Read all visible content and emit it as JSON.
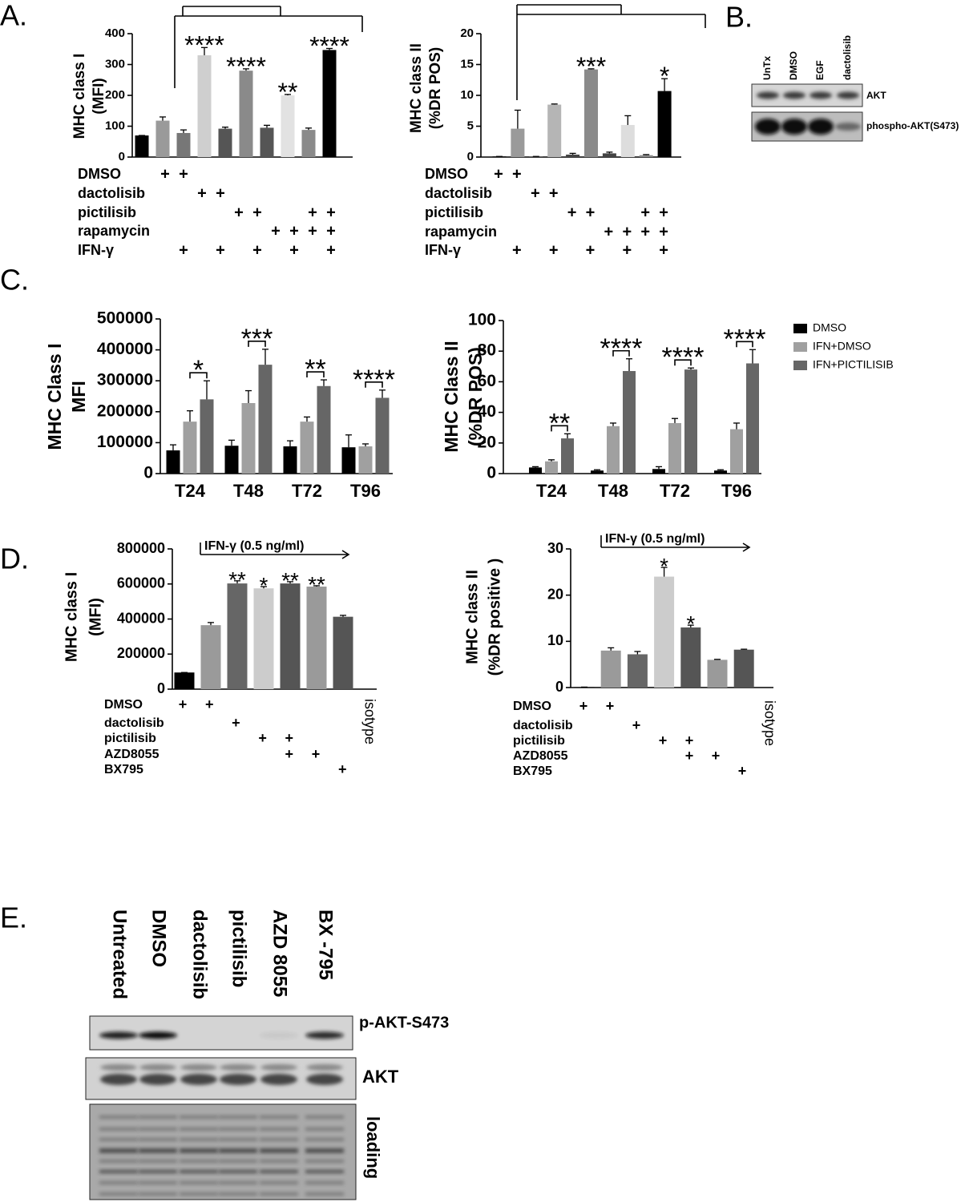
{
  "panel_labels": [
    "A.",
    "B.",
    "C.",
    "D.",
    "E."
  ],
  "blot_b": {
    "lanes": [
      "UnTx",
      "DMSO",
      "EGF",
      "dactolisib"
    ],
    "bands": [
      "AKT",
      "phospho-AKT(S473)"
    ]
  },
  "blot_e": {
    "lanes": [
      "Untreated",
      "DMSO",
      "dactolisib",
      "pictilisib",
      "AZD 8055",
      "BX -795"
    ],
    "bands": [
      "p-AKT-S473",
      "AKT",
      "loading"
    ]
  },
  "chart_data": [
    {
      "type": "bar",
      "ylabel": [
        "MHC class  I",
        "(MFI)"
      ],
      "categories": [
        null,
        null,
        null,
        null,
        null,
        null,
        null,
        null,
        null,
        null
      ],
      "values": [
        70,
        118,
        78,
        330,
        92,
        280,
        95,
        200,
        88,
        347
      ],
      "errors": [
        0,
        12,
        10,
        25,
        5,
        6,
        8,
        3,
        6,
        5
      ],
      "colors": [
        "#000000",
        "#9a9a9a",
        "#777777",
        "#cfcfcf",
        "#555555",
        "#8a8a8a",
        "#555555",
        "#e2e2e2",
        "#8a8a8a",
        "#000000"
      ],
      "significance": [
        null,
        null,
        null,
        "****",
        null,
        "****",
        null,
        "**",
        null,
        "****"
      ],
      "ylim": [
        0,
        400
      ],
      "yticks": [
        0,
        100,
        200,
        300,
        400
      ],
      "treatments": [
        {
          "name": "DMSO",
          "marks": [
            "+",
            "+",
            null,
            null,
            null,
            null,
            null,
            null,
            null,
            null
          ]
        },
        {
          "name": "dactolisib",
          "marks": [
            null,
            null,
            "+",
            "+",
            null,
            null,
            null,
            null,
            null,
            null
          ]
        },
        {
          "name": "pictilisib",
          "marks": [
            null,
            null,
            null,
            null,
            "+",
            "+",
            null,
            null,
            "+",
            "+"
          ]
        },
        {
          "name": "rapamycin",
          "marks": [
            null,
            null,
            null,
            null,
            null,
            null,
            "+",
            "+",
            "+",
            "+"
          ]
        },
        {
          "name": "IFN-γ",
          "marks": [
            null,
            "+",
            null,
            "+",
            null,
            "+",
            null,
            "+",
            null,
            "+"
          ]
        }
      ]
    },
    {
      "type": "bar",
      "ylabel": [
        "MHC class  II",
        "(%DR POS)"
      ],
      "categories": [
        null,
        null,
        null,
        null,
        null,
        null,
        null,
        null,
        null,
        null
      ],
      "values": [
        0.1,
        4.6,
        0.1,
        8.5,
        0.4,
        14.2,
        0.6,
        5.2,
        0.3,
        10.7
      ],
      "errors": [
        0,
        3,
        0,
        0.1,
        0.2,
        0.1,
        0.2,
        1.5,
        0.1,
        2
      ],
      "colors": [
        "#000000",
        "#9a9a9a",
        "#555555",
        "#b5b5b5",
        "#444444",
        "#8a8a8a",
        "#444444",
        "#dddddd",
        "#8a8a8a",
        "#000000"
      ],
      "significance": [
        null,
        null,
        null,
        null,
        null,
        "***",
        null,
        null,
        null,
        "*"
      ],
      "ylim": [
        0,
        20
      ],
      "yticks": [
        0,
        5,
        10,
        15,
        20
      ],
      "treatments": [
        {
          "name": "DMSO",
          "marks": [
            "+",
            "+",
            null,
            null,
            null,
            null,
            null,
            null,
            null,
            null
          ]
        },
        {
          "name": "dactolisib",
          "marks": [
            null,
            null,
            "+",
            "+",
            null,
            null,
            null,
            null,
            null,
            null
          ]
        },
        {
          "name": "pictilisib",
          "marks": [
            null,
            null,
            null,
            null,
            "+",
            "+",
            null,
            null,
            "+",
            "+"
          ]
        },
        {
          "name": "rapamycin",
          "marks": [
            null,
            null,
            null,
            null,
            null,
            null,
            "+",
            "+",
            "+",
            "+"
          ]
        },
        {
          "name": "IFN-γ",
          "marks": [
            null,
            "+",
            null,
            "+",
            null,
            "+",
            null,
            "+",
            null,
            "+"
          ]
        }
      ]
    },
    {
      "type": "grouped_bar",
      "ylabel": [
        "MHC Class  I",
        "MFI"
      ],
      "categories": [
        "T24",
        "T48",
        "T72",
        "T96"
      ],
      "series": [
        {
          "color": "#000000",
          "values": [
            75000,
            90000,
            88000,
            85000
          ],
          "errors": [
            18000,
            18000,
            18000,
            40000
          ]
        },
        {
          "color": "#a0a0a0",
          "values": [
            168000,
            228000,
            168000,
            88000
          ],
          "errors": [
            35000,
            40000,
            15000,
            8000
          ]
        },
        {
          "color": "#666666",
          "values": [
            240000,
            352000,
            283000,
            245000
          ],
          "errors": [
            60000,
            50000,
            20000,
            25000
          ]
        }
      ],
      "significance": [
        "*",
        "***",
        "**",
        "****"
      ],
      "ylim": [
        0,
        500000
      ],
      "yticks": [
        0,
        100000,
        200000,
        300000,
        400000,
        500000
      ]
    },
    {
      "type": "grouped_bar",
      "ylabel": [
        "MHC Class  II",
        "(%DR POS)"
      ],
      "categories": [
        "T24",
        "T48",
        "T72",
        "T96"
      ],
      "series": [
        {
          "name": "DMSO",
          "color": "#000000",
          "values": [
            4,
            2,
            3,
            2
          ],
          "errors": [
            0.5,
            0.5,
            1.5,
            0.5
          ]
        },
        {
          "name": "IFN+DMSO",
          "color": "#a0a0a0",
          "values": [
            8,
            31,
            33,
            29
          ],
          "errors": [
            1,
            2,
            3,
            4
          ]
        },
        {
          "name": "IFN+PICTILISIB",
          "color": "#666666",
          "values": [
            23,
            67,
            68,
            72
          ],
          "errors": [
            3,
            8,
            1,
            9
          ]
        }
      ],
      "significance": [
        "**",
        "****",
        "****",
        "****"
      ],
      "legend": "right",
      "ylim": [
        0,
        100
      ],
      "yticks": [
        0,
        20,
        40,
        60,
        80,
        100
      ]
    },
    {
      "type": "bar",
      "ylabel": [
        "MHC class  I",
        "(MFI)"
      ],
      "annotation": "IFN-γ (0.5 ng/ml)",
      "categories": [
        null,
        null,
        null,
        null,
        null,
        null,
        null,
        "isotype"
      ],
      "values": [
        95000,
        365000,
        603000,
        575000,
        603000,
        585000,
        413000,
        null
      ],
      "errors": [
        0,
        15000,
        15000,
        10000,
        10000,
        5000,
        8000,
        null
      ],
      "colors": [
        "#000000",
        "#9a9a9a",
        "#666666",
        "#cccccc",
        "#555555",
        "#9a9a9a",
        "#555555",
        null
      ],
      "significance": [
        null,
        null,
        "**",
        "*",
        "**",
        "**",
        null,
        null
      ],
      "ylim": [
        0,
        800000
      ],
      "yticks": [
        0,
        200000,
        400000,
        600000,
        800000
      ],
      "treatments": [
        {
          "name": "DMSO",
          "marks": [
            "+",
            "+",
            null,
            null,
            null,
            null,
            null,
            null
          ]
        },
        {
          "name": "dactolisib",
          "marks": [
            null,
            null,
            "+",
            null,
            null,
            null,
            null,
            null
          ]
        },
        {
          "name": "pictilisib",
          "marks": [
            null,
            null,
            null,
            "+",
            "+",
            null,
            null,
            null
          ]
        },
        {
          "name": "AZD8055",
          "marks": [
            null,
            null,
            null,
            null,
            "+",
            "+",
            null,
            null
          ]
        },
        {
          "name": "BX795",
          "marks": [
            null,
            null,
            null,
            null,
            null,
            null,
            "+",
            null
          ]
        }
      ]
    },
    {
      "type": "bar",
      "ylabel": [
        "MHC class  II",
        "(%DR positive )"
      ],
      "annotation": "IFN-γ (0.5 ng/ml)",
      "categories": [
        null,
        null,
        null,
        null,
        null,
        null,
        null,
        "isotype"
      ],
      "values": [
        0.1,
        8,
        7.2,
        24,
        13,
        6,
        8.2,
        null
      ],
      "errors": [
        0,
        0.6,
        0.6,
        2,
        0.5,
        0.1,
        0.1,
        null
      ],
      "colors": [
        "#000000",
        "#9a9a9a",
        "#666666",
        "#cccccc",
        "#555555",
        "#9a9a9a",
        "#555555",
        null
      ],
      "significance": [
        null,
        null,
        null,
        "*",
        "*",
        null,
        null,
        null
      ],
      "ylim": [
        0,
        30
      ],
      "yticks": [
        0,
        10,
        20,
        30
      ],
      "treatments": [
        {
          "name": "DMSO",
          "marks": [
            "+",
            "+",
            null,
            null,
            null,
            null,
            null,
            null
          ]
        },
        {
          "name": "dactolisib",
          "marks": [
            null,
            null,
            "+",
            null,
            null,
            null,
            null,
            null
          ]
        },
        {
          "name": "pictilisib",
          "marks": [
            null,
            null,
            null,
            "+",
            "+",
            null,
            null,
            null
          ]
        },
        {
          "name": "AZD8055",
          "marks": [
            null,
            null,
            null,
            null,
            "+",
            "+",
            null,
            null
          ]
        },
        {
          "name": "BX795",
          "marks": [
            null,
            null,
            null,
            null,
            null,
            null,
            "+",
            null
          ]
        }
      ]
    }
  ]
}
